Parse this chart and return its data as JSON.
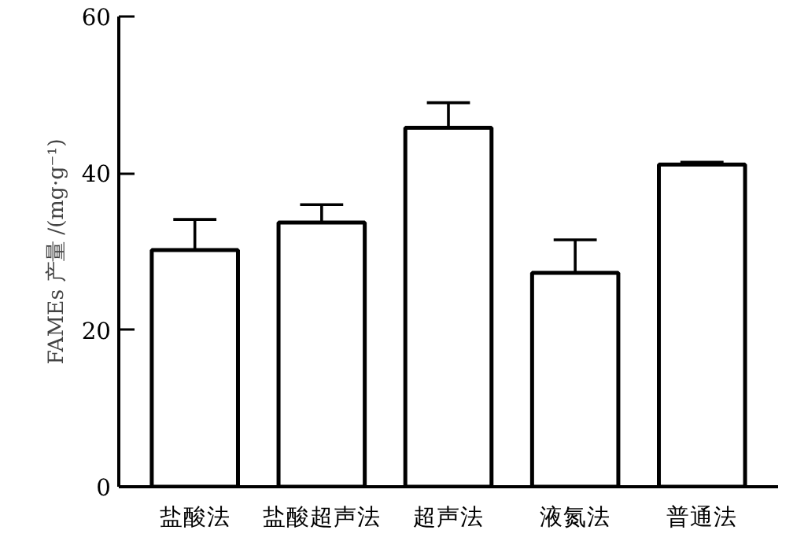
{
  "chart_data": {
    "type": "bar",
    "ylabel": "FAMEs 产量 /(mg·g⁻¹)",
    "categories": [
      "盐酸法",
      "盐酸超声法",
      "超声法",
      "液氮法",
      "普通法"
    ],
    "values": [
      30.2,
      33.7,
      45.8,
      27.3,
      41.1
    ],
    "errors": [
      [
        30.2,
        34.1
      ],
      [
        33.7,
        36.0
      ],
      [
        45.8,
        49.0
      ],
      [
        27.3,
        31.5
      ],
      [
        41.1,
        41.4
      ]
    ],
    "color": "#ffffff",
    "ylim": [
      0,
      60
    ],
    "yticks": [
      0,
      20,
      40,
      60
    ],
    "grid": false
  }
}
